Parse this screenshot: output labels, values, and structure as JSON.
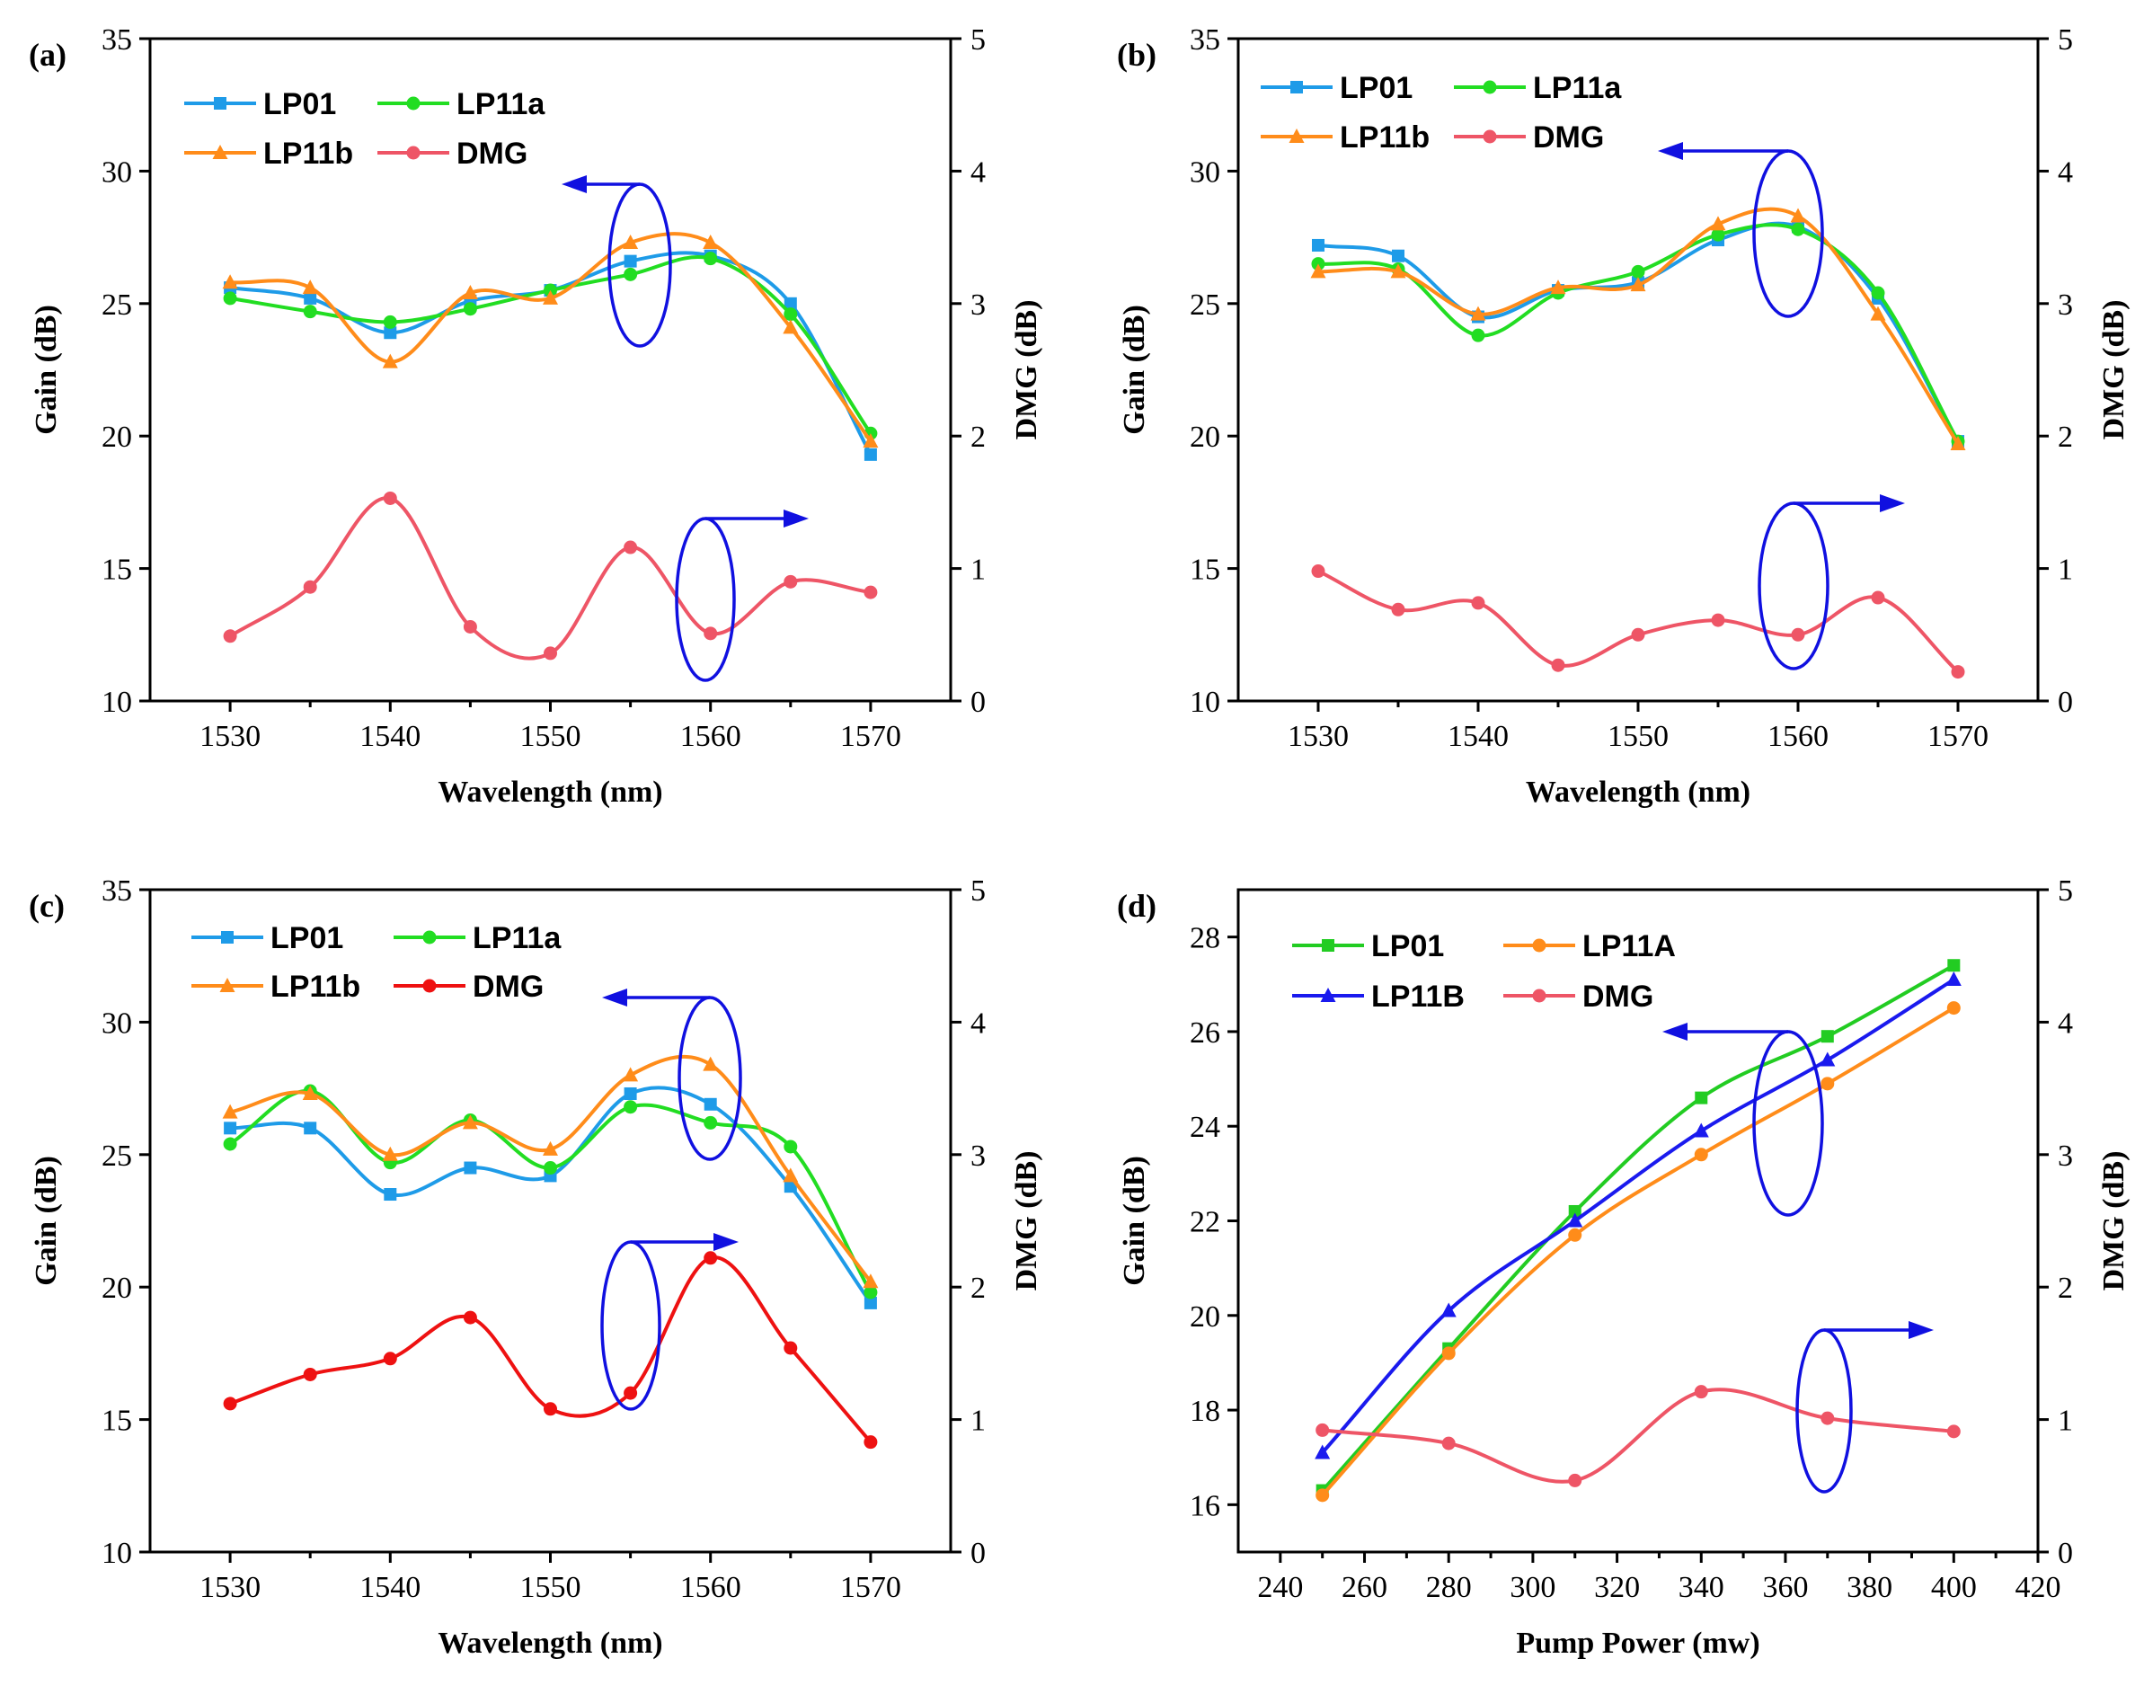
{
  "chart_data": [
    {
      "panel": "(a)",
      "type": "line",
      "xlabel": "Wavelength (nm)",
      "ylabel": "Gain (dB)",
      "y2label": "DMG (dB)",
      "xlim": [
        1525,
        1575
      ],
      "ylim": [
        10,
        35
      ],
      "y2lim": [
        0,
        5
      ],
      "xticks": [
        1530,
        1540,
        1550,
        1560,
        1570
      ],
      "yticks": [
        10,
        15,
        20,
        25,
        30,
        35
      ],
      "y2ticks": [
        0,
        1,
        2,
        3,
        4,
        5
      ],
      "x": [
        1530,
        1535,
        1540,
        1545,
        1550,
        1555,
        1560,
        1565,
        1570
      ],
      "series": [
        {
          "name": "LP01",
          "axis": "left",
          "color": "#1e9be8",
          "marker": "square",
          "values": [
            25.6,
            25.2,
            23.9,
            25.1,
            25.5,
            26.6,
            26.8,
            25.0,
            19.3
          ]
        },
        {
          "name": "LP11a",
          "axis": "left",
          "color": "#22dd22",
          "marker": "circle",
          "values": [
            25.2,
            24.7,
            24.3,
            24.8,
            25.5,
            26.1,
            26.7,
            24.6,
            20.1
          ]
        },
        {
          "name": "LP11b",
          "axis": "left",
          "color": "#ff8c1a",
          "marker": "triangle",
          "values": [
            25.8,
            25.6,
            22.8,
            25.4,
            25.2,
            27.3,
            27.3,
            24.1,
            19.8
          ]
        },
        {
          "name": "DMG",
          "axis": "right",
          "color": "#ee5566",
          "marker": "circle",
          "values": [
            0.49,
            0.86,
            1.53,
            0.56,
            0.36,
            1.16,
            0.51,
            0.9,
            0.82
          ]
        }
      ],
      "legend": [
        "LP01",
        "LP11a",
        "LP11b",
        "DMG"
      ],
      "legend_position": "top-left"
    },
    {
      "panel": "(b)",
      "type": "line",
      "xlabel": "Wavelength (nm)",
      "ylabel": "Gain (dB)",
      "y2label": "DMG (dB)",
      "xlim": [
        1525,
        1575
      ],
      "ylim": [
        10,
        35
      ],
      "y2lim": [
        0,
        5
      ],
      "xticks": [
        1530,
        1540,
        1550,
        1560,
        1570
      ],
      "yticks": [
        10,
        15,
        20,
        25,
        30,
        35
      ],
      "y2ticks": [
        0,
        1,
        2,
        3,
        4,
        5
      ],
      "x": [
        1530,
        1535,
        1540,
        1545,
        1550,
        1555,
        1560,
        1565,
        1570
      ],
      "series": [
        {
          "name": "LP01",
          "axis": "left",
          "color": "#1e9be8",
          "marker": "square",
          "values": [
            27.2,
            26.8,
            24.5,
            25.5,
            25.8,
            27.4,
            27.9,
            25.2,
            19.8
          ]
        },
        {
          "name": "LP11a",
          "axis": "left",
          "color": "#22dd22",
          "marker": "circle",
          "values": [
            26.5,
            26.3,
            23.8,
            25.4,
            26.2,
            27.6,
            27.8,
            25.4,
            19.8
          ]
        },
        {
          "name": "LP11b",
          "axis": "left",
          "color": "#ff8c1a",
          "marker": "triangle",
          "values": [
            26.2,
            26.2,
            24.6,
            25.6,
            25.7,
            28.0,
            28.3,
            24.6,
            19.7
          ]
        },
        {
          "name": "DMG",
          "axis": "right",
          "color": "#ee5566",
          "marker": "circle",
          "values": [
            0.98,
            0.69,
            0.74,
            0.27,
            0.5,
            0.61,
            0.5,
            0.78,
            0.22
          ]
        }
      ],
      "legend": [
        "LP01",
        "LP11a",
        "LP11b",
        "DMG"
      ],
      "legend_position": "top-left"
    },
    {
      "panel": "(c)",
      "type": "line",
      "xlabel": "Wavelength (nm)",
      "ylabel": "Gain (dB)",
      "y2label": "DMG (dB)",
      "xlim": [
        1525,
        1575
      ],
      "ylim": [
        10,
        35
      ],
      "y2lim": [
        0,
        5
      ],
      "xticks": [
        1530,
        1540,
        1550,
        1560,
        1570
      ],
      "yticks": [
        10,
        15,
        20,
        25,
        30,
        35
      ],
      "y2ticks": [
        0,
        1,
        2,
        3,
        4,
        5
      ],
      "x": [
        1530,
        1535,
        1540,
        1545,
        1550,
        1555,
        1560,
        1565,
        1570
      ],
      "series": [
        {
          "name": "LP01",
          "axis": "left",
          "color": "#1e9be8",
          "marker": "square",
          "values": [
            26.0,
            26.0,
            23.5,
            24.5,
            24.2,
            27.3,
            26.9,
            23.8,
            19.4
          ]
        },
        {
          "name": "LP11a",
          "axis": "left",
          "color": "#22dd22",
          "marker": "circle",
          "values": [
            25.4,
            27.4,
            24.7,
            26.3,
            24.5,
            26.8,
            26.2,
            25.3,
            19.8
          ]
        },
        {
          "name": "LP11b",
          "axis": "left",
          "color": "#ff8c1a",
          "marker": "triangle",
          "values": [
            26.6,
            27.3,
            25.0,
            26.2,
            25.2,
            28.0,
            28.4,
            24.2,
            20.2
          ]
        },
        {
          "name": "DMG",
          "axis": "right",
          "color": "#ee1111",
          "marker": "circle",
          "values": [
            1.12,
            1.34,
            1.46,
            1.77,
            1.08,
            1.2,
            2.22,
            1.54,
            0.83
          ]
        }
      ],
      "legend": [
        "LP01",
        "LP11a",
        "LP11b",
        "DMG"
      ],
      "legend_position": "top-left"
    },
    {
      "panel": "(d)",
      "type": "line",
      "xlabel": "Pump Power (mw)",
      "ylabel": "Gain (dB)",
      "y2label": "DMG (dB)",
      "xlim": [
        230,
        420
      ],
      "ylim": [
        15,
        29
      ],
      "y2lim": [
        0,
        5
      ],
      "xticks": [
        240,
        260,
        280,
        300,
        320,
        340,
        360,
        380,
        400,
        420
      ],
      "yticks": [
        16,
        18,
        20,
        22,
        24,
        26,
        28
      ],
      "y2ticks": [
        0,
        1,
        2,
        3,
        4,
        5
      ],
      "x": [
        250,
        280,
        310,
        340,
        370,
        400
      ],
      "series": [
        {
          "name": "LP01",
          "axis": "left",
          "color": "#22cc22",
          "marker": "square",
          "values": [
            16.3,
            19.3,
            22.2,
            24.6,
            25.9,
            27.4
          ]
        },
        {
          "name": "LP11A",
          "axis": "left",
          "color": "#ff8c1a",
          "marker": "circle",
          "values": [
            16.2,
            19.2,
            21.7,
            23.4,
            24.9,
            26.5
          ]
        },
        {
          "name": "LP11B",
          "axis": "left",
          "color": "#1a1aee",
          "marker": "triangle",
          "values": [
            17.1,
            20.1,
            22.0,
            23.9,
            25.4,
            27.1
          ]
        },
        {
          "name": "DMG",
          "axis": "right",
          "color": "#ee5566",
          "marker": "circle",
          "values": [
            0.92,
            0.82,
            0.54,
            1.21,
            1.01,
            0.91
          ]
        }
      ],
      "legend": [
        "LP01",
        "LP11A",
        "LP11B",
        "DMG"
      ],
      "legend_position": "top-left"
    }
  ]
}
